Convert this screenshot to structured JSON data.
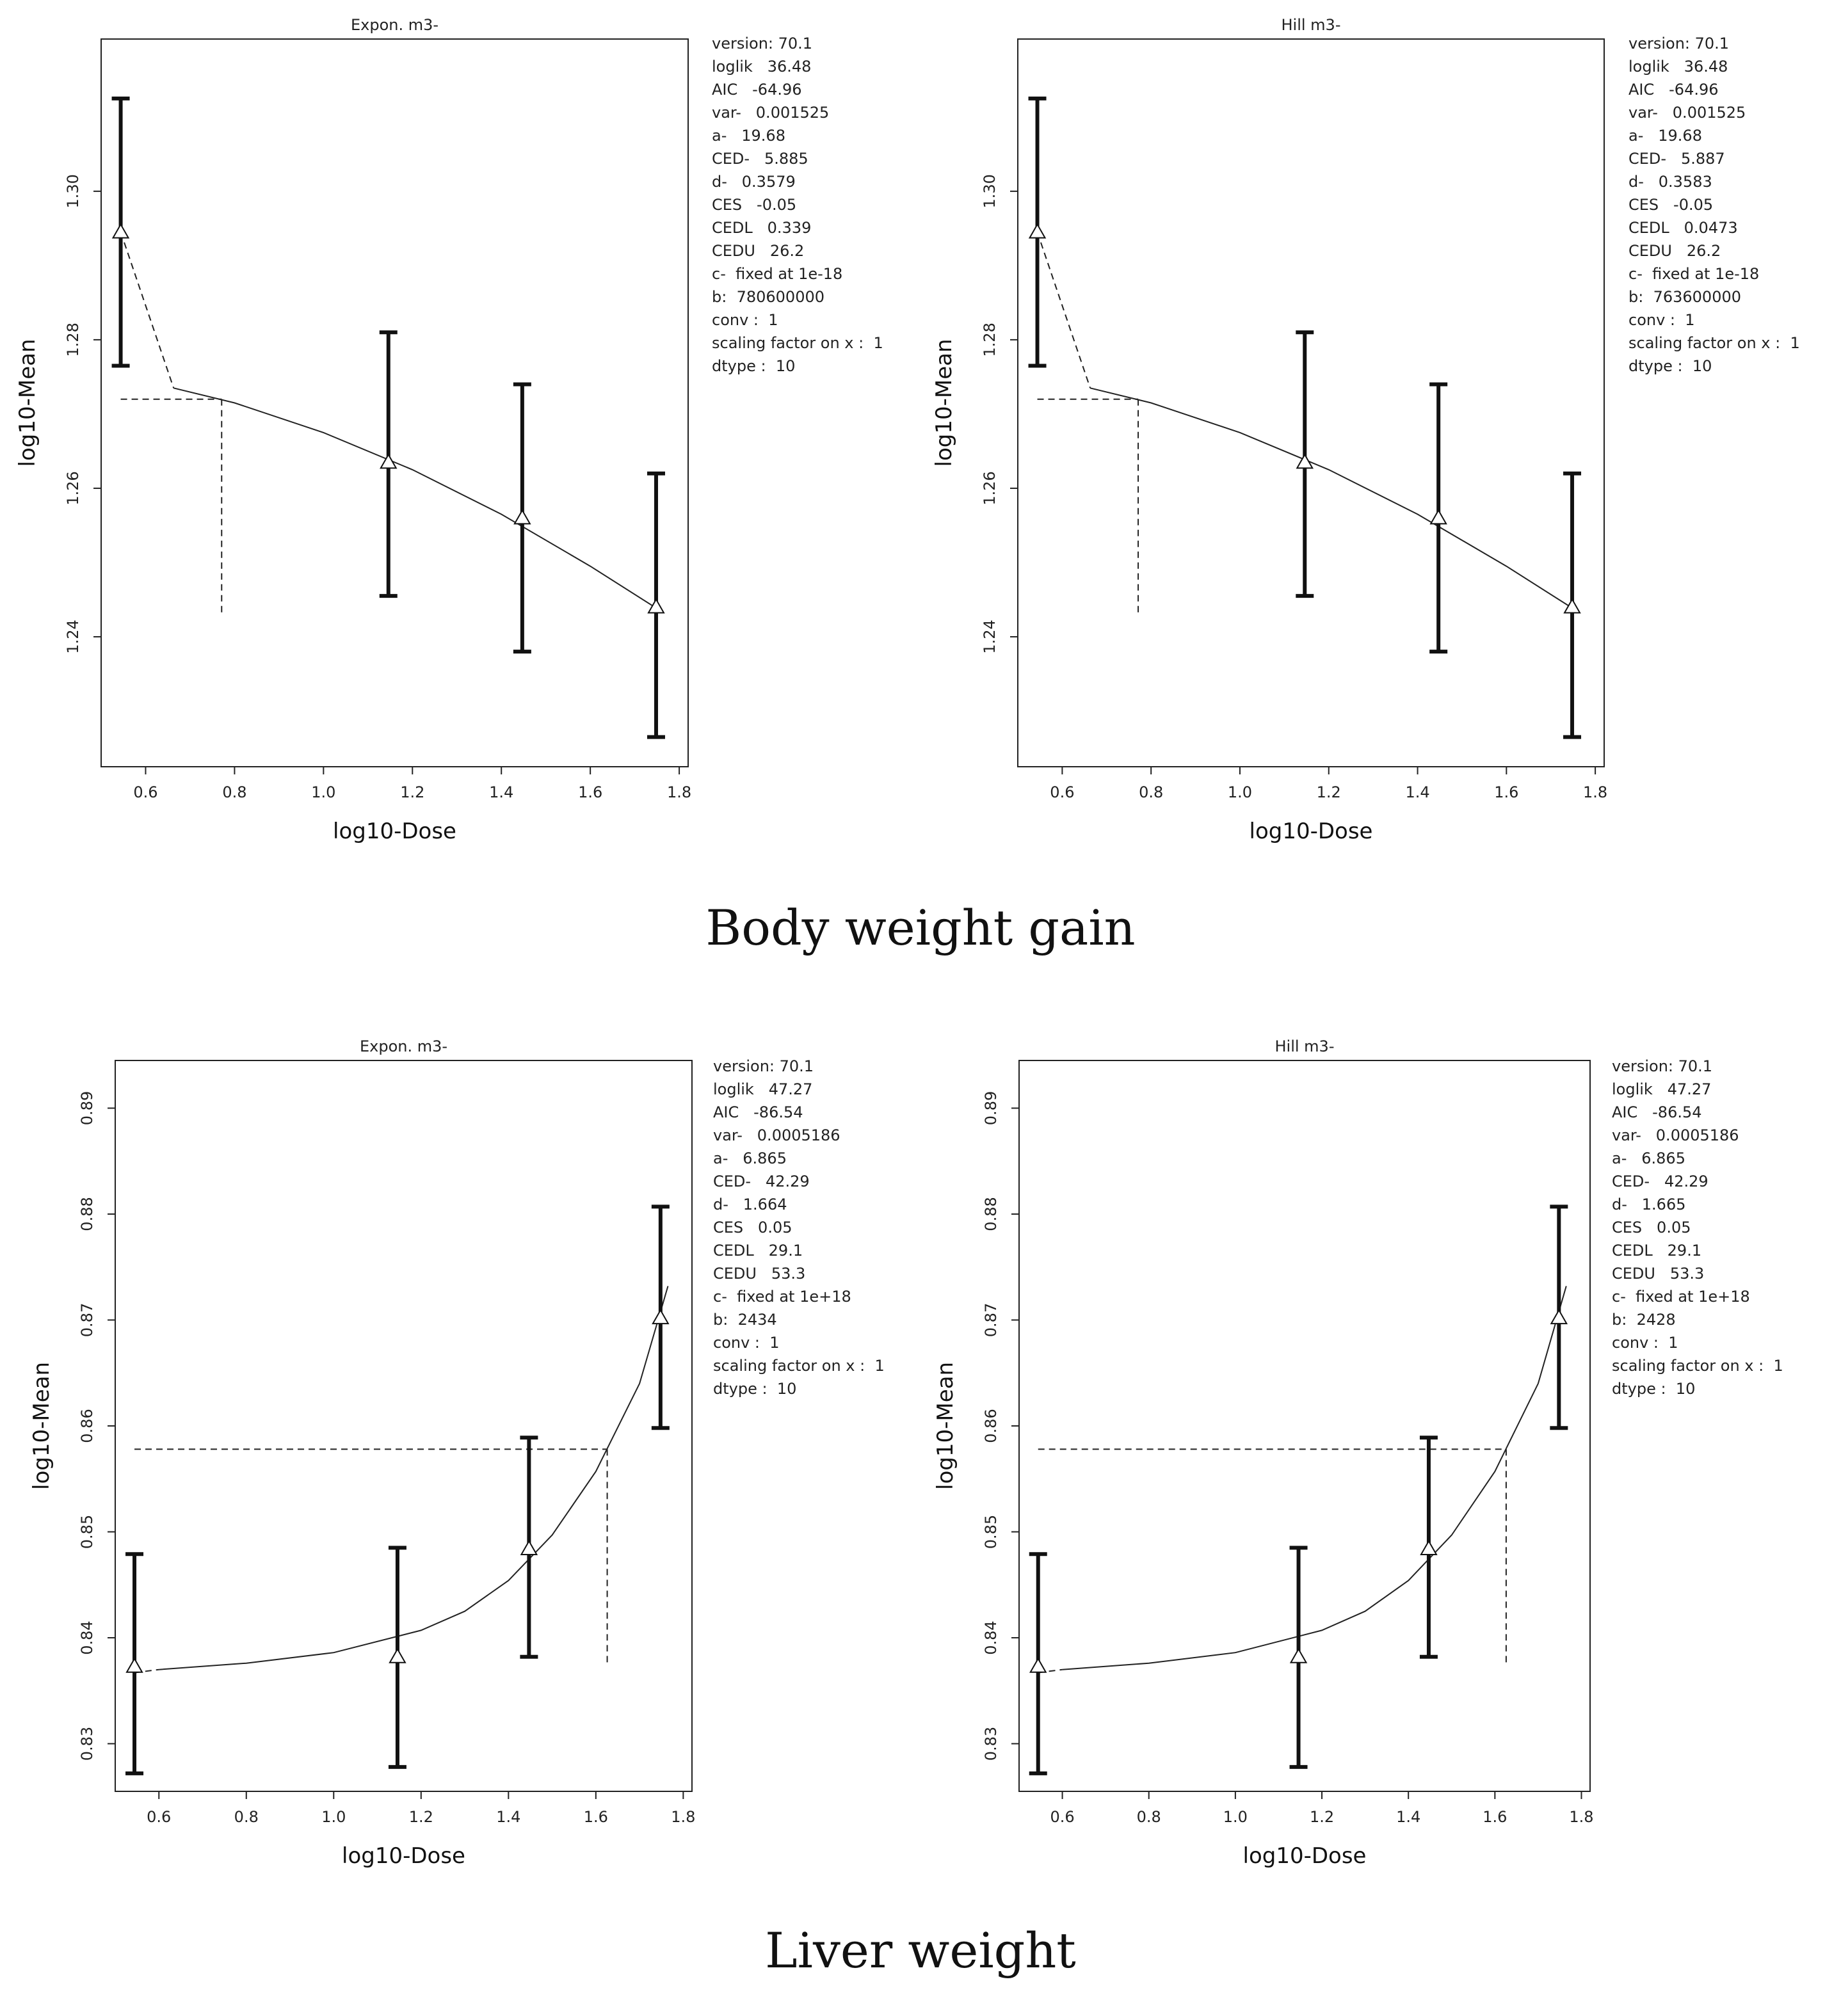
{
  "captions": {
    "top": "Body weight gain",
    "bottom": "Liver weight"
  },
  "chart_data": [
    {
      "type": "scatter",
      "title": "Expon. m3-",
      "xlabel": "log10-Dose",
      "ylabel": "log10-Mean",
      "xlim": [
        0.5,
        1.82
      ],
      "ylim": [
        1.2225,
        1.3205
      ],
      "xticks": [
        0.6,
        0.8,
        1.0,
        1.2,
        1.4,
        1.6,
        1.8
      ],
      "xtick_labels": [
        "0.6",
        "0.8",
        "1.0",
        "1.2",
        "1.4",
        "1.6",
        "1.8"
      ],
      "yticks": [
        1.24,
        1.26,
        1.28,
        1.3
      ],
      "ytick_labels": [
        "1.24",
        "1.26",
        "1.28",
        "1.30"
      ],
      "points": [
        {
          "x": 0.544,
          "y": 1.2945,
          "lo": 1.2765,
          "hi": 1.3125
        },
        {
          "x": 1.146,
          "y": 1.2635,
          "lo": 1.2455,
          "hi": 1.281
        },
        {
          "x": 1.447,
          "y": 1.256,
          "lo": 1.238,
          "hi": 1.274
        },
        {
          "x": 1.748,
          "y": 1.244,
          "lo": 1.2265,
          "hi": 1.262
        }
      ],
      "fit_dashed": [
        [
          0.544,
          1.2945
        ],
        [
          0.663,
          1.2735
        ]
      ],
      "fit_curve": [
        [
          0.663,
          1.2735
        ],
        [
          0.8,
          1.2715
        ],
        [
          1.0,
          1.2675
        ],
        [
          1.2,
          1.2625
        ],
        [
          1.4,
          1.2565
        ],
        [
          1.6,
          1.2495
        ],
        [
          1.75,
          1.2438
        ]
      ],
      "ced_line": {
        "x": 0.771,
        "y": 1.272,
        "x_start": 0.544,
        "y_bottom": 1.243
      },
      "stats": [
        "version: 70.1",
        "loglik   36.48",
        "AIC   -64.96",
        "var-   0.001525",
        "a-   19.68",
        "CED-   5.885",
        "d-   0.3579",
        "CES   -0.05",
        "CEDL   0.339",
        "CEDU   26.2",
        "c-  fixed at 1e-18",
        "b:  780600000",
        "conv :  1",
        "scaling factor on x :  1",
        "dtype :  10"
      ]
    },
    {
      "type": "scatter",
      "title": "Hill m3-",
      "xlabel": "log10-Dose",
      "ylabel": "log10-Mean",
      "xlim": [
        0.5,
        1.82
      ],
      "ylim": [
        1.2225,
        1.3205
      ],
      "xticks": [
        0.6,
        0.8,
        1.0,
        1.2,
        1.4,
        1.6,
        1.8
      ],
      "xtick_labels": [
        "0.6",
        "0.8",
        "1.0",
        "1.2",
        "1.4",
        "1.6",
        "1.8"
      ],
      "yticks": [
        1.24,
        1.26,
        1.28,
        1.3
      ],
      "ytick_labels": [
        "1.24",
        "1.26",
        "1.28",
        "1.30"
      ],
      "points": [
        {
          "x": 0.544,
          "y": 1.2945,
          "lo": 1.2765,
          "hi": 1.3125
        },
        {
          "x": 1.146,
          "y": 1.2635,
          "lo": 1.2455,
          "hi": 1.281
        },
        {
          "x": 1.447,
          "y": 1.256,
          "lo": 1.238,
          "hi": 1.274
        },
        {
          "x": 1.748,
          "y": 1.244,
          "lo": 1.2265,
          "hi": 1.262
        }
      ],
      "fit_dashed": [
        [
          0.544,
          1.2945
        ],
        [
          0.663,
          1.2735
        ]
      ],
      "fit_curve": [
        [
          0.663,
          1.2735
        ],
        [
          0.8,
          1.2715
        ],
        [
          1.0,
          1.2675
        ],
        [
          1.2,
          1.2625
        ],
        [
          1.4,
          1.2565
        ],
        [
          1.6,
          1.2495
        ],
        [
          1.75,
          1.2438
        ]
      ],
      "ced_line": {
        "x": 0.771,
        "y": 1.272,
        "x_start": 0.544,
        "y_bottom": 1.243
      },
      "stats": [
        "version: 70.1",
        "loglik   36.48",
        "AIC   -64.96",
        "var-   0.001525",
        "a-   19.68",
        "CED-   5.887",
        "d-   0.3583",
        "CES   -0.05",
        "CEDL   0.0473",
        "CEDU   26.2",
        "c-  fixed at 1e-18",
        "b:  763600000",
        "conv :  1",
        "scaling factor on x :  1",
        "dtype :  10"
      ]
    },
    {
      "type": "scatter",
      "title": "Expon. m3-",
      "xlabel": "log10-Dose",
      "ylabel": "log10-Mean",
      "xlim": [
        0.5,
        1.82
      ],
      "ylim": [
        0.8255,
        0.8945
      ],
      "xticks": [
        0.6,
        0.8,
        1.0,
        1.2,
        1.4,
        1.6,
        1.8
      ],
      "xtick_labels": [
        "0.6",
        "0.8",
        "1.0",
        "1.2",
        "1.4",
        "1.6",
        "1.8"
      ],
      "yticks": [
        0.83,
        0.84,
        0.85,
        0.86,
        0.87,
        0.88,
        0.89
      ],
      "ytick_labels": [
        "0.83",
        "0.84",
        "0.85",
        "0.86",
        "0.87",
        "0.88",
        "0.89"
      ],
      "points": [
        {
          "x": 0.544,
          "y": 0.8373,
          "lo": 0.8272,
          "hi": 0.8479
        },
        {
          "x": 1.146,
          "y": 0.8382,
          "lo": 0.8278,
          "hi": 0.8485
        },
        {
          "x": 1.447,
          "y": 0.8484,
          "lo": 0.8382,
          "hi": 0.8589
        },
        {
          "x": 1.748,
          "y": 0.8702,
          "lo": 0.8598,
          "hi": 0.8807
        }
      ],
      "fit_dashed": [
        [
          0.544,
          0.8367
        ],
        [
          0.6,
          0.837
        ]
      ],
      "fit_curve": [
        [
          0.6,
          0.837
        ],
        [
          0.8,
          0.8376
        ],
        [
          1.0,
          0.8386
        ],
        [
          1.2,
          0.8407
        ],
        [
          1.3,
          0.8425
        ],
        [
          1.4,
          0.8454
        ],
        [
          1.5,
          0.8497
        ],
        [
          1.6,
          0.8557
        ],
        [
          1.7,
          0.864
        ],
        [
          1.765,
          0.8732
        ]
      ],
      "ced_line": {
        "x": 1.626,
        "y": 0.8578,
        "x_start": 0.544,
        "y_bottom": 0.8375
      },
      "stats": [
        "version: 70.1",
        "loglik   47.27",
        "AIC   -86.54",
        "var-   0.0005186",
        "a-   6.865",
        "CED-   42.29",
        "d-   1.664",
        "CES   0.05",
        "CEDL   29.1",
        "CEDU   53.3",
        "c-  fixed at 1e+18",
        "b:  2434",
        "conv :  1",
        "scaling factor on x :  1",
        "dtype :  10"
      ]
    },
    {
      "type": "scatter",
      "title": "Hill m3-",
      "xlabel": "log10-Dose",
      "ylabel": "log10-Mean",
      "xlim": [
        0.5,
        1.82
      ],
      "ylim": [
        0.8255,
        0.8945
      ],
      "xticks": [
        0.6,
        0.8,
        1.0,
        1.2,
        1.4,
        1.6,
        1.8
      ],
      "xtick_labels": [
        "0.6",
        "0.8",
        "1.0",
        "1.2",
        "1.4",
        "1.6",
        "1.8"
      ],
      "yticks": [
        0.83,
        0.84,
        0.85,
        0.86,
        0.87,
        0.88,
        0.89
      ],
      "ytick_labels": [
        "0.83",
        "0.84",
        "0.85",
        "0.86",
        "0.87",
        "0.88",
        "0.89"
      ],
      "points": [
        {
          "x": 0.544,
          "y": 0.8373,
          "lo": 0.8272,
          "hi": 0.8479
        },
        {
          "x": 1.146,
          "y": 0.8382,
          "lo": 0.8278,
          "hi": 0.8485
        },
        {
          "x": 1.447,
          "y": 0.8484,
          "lo": 0.8382,
          "hi": 0.8589
        },
        {
          "x": 1.748,
          "y": 0.8702,
          "lo": 0.8598,
          "hi": 0.8807
        }
      ],
      "fit_dashed": [
        [
          0.544,
          0.8367
        ],
        [
          0.6,
          0.837
        ]
      ],
      "fit_curve": [
        [
          0.6,
          0.837
        ],
        [
          0.8,
          0.8376
        ],
        [
          1.0,
          0.8386
        ],
        [
          1.2,
          0.8407
        ],
        [
          1.3,
          0.8425
        ],
        [
          1.4,
          0.8454
        ],
        [
          1.5,
          0.8497
        ],
        [
          1.6,
          0.8557
        ],
        [
          1.7,
          0.864
        ],
        [
          1.765,
          0.8732
        ]
      ],
      "ced_line": {
        "x": 1.626,
        "y": 0.8578,
        "x_start": 0.544,
        "y_bottom": 0.8375
      },
      "stats": [
        "version: 70.1",
        "loglik   47.27",
        "AIC   -86.54",
        "var-   0.0005186",
        "a-   6.865",
        "CED-   42.29",
        "d-   1.665",
        "CES   0.05",
        "CEDL   29.1",
        "CEDU   53.3",
        "c-  fixed at 1e+18",
        "b:  2428",
        "conv :  1",
        "scaling factor on x :  1",
        "dtype :  10"
      ]
    }
  ]
}
